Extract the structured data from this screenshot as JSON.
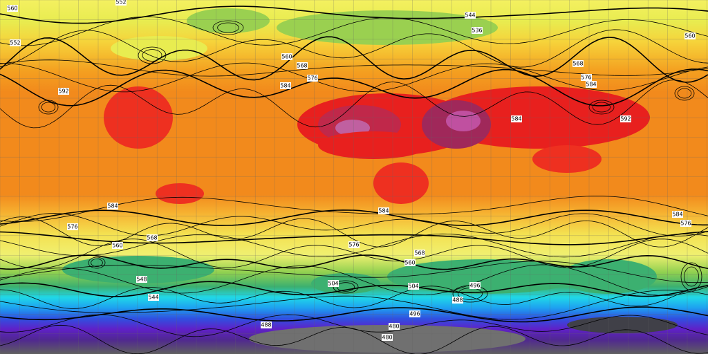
{
  "map": {
    "contour_labels": [
      "552",
      "560",
      "552",
      "592",
      "560",
      "568",
      "576",
      "584",
      "544",
      "536",
      "568",
      "576",
      "584",
      "592",
      "584",
      "560",
      "584",
      "576",
      "568",
      "560",
      "584",
      "576",
      "568",
      "560",
      "504",
      "496",
      "488",
      "504",
      "488",
      "480",
      "480",
      "584",
      "576",
      "548",
      "544",
      "496"
    ]
  }
}
